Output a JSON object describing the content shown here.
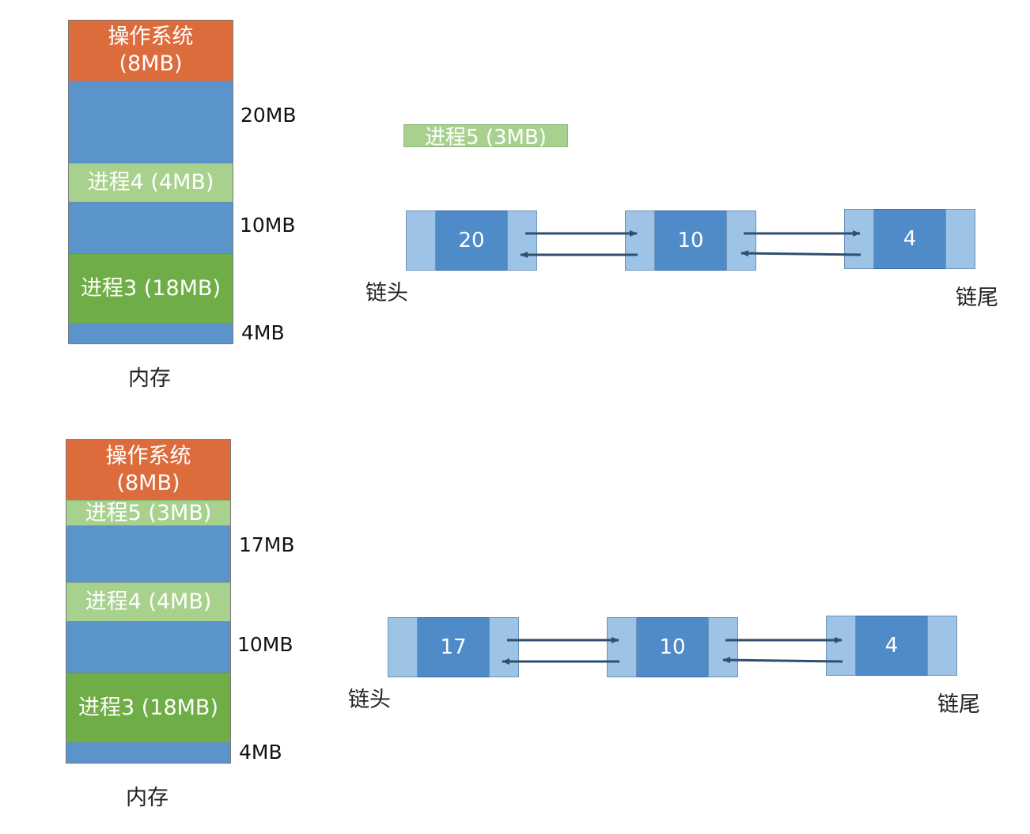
{
  "top": {
    "memory": {
      "os_label": "操作系统\n(8MB)",
      "free1_label": "",
      "process4_label": "进程4 (4MB)",
      "free2_label": "",
      "process3_label": "进程3 (18MB)",
      "free3_label": "",
      "caption": "内存"
    },
    "sizes": [
      "20MB",
      "10MB",
      "4MB"
    ],
    "incoming_process": "进程5 (3MB)",
    "list": {
      "nodes": [
        "20",
        "10",
        "4"
      ],
      "head_label": "链头",
      "tail_label": "链尾"
    }
  },
  "bottom": {
    "memory": {
      "os_label": "操作系统\n(8MB)",
      "process5_label": "进程5 (3MB)",
      "free1_label": "",
      "process4_label": "进程4 (4MB)",
      "free2_label": "",
      "process3_label": "进程3 (18MB)",
      "free3_label": "",
      "caption": "内存"
    },
    "sizes": [
      "17MB",
      "10MB",
      "4MB"
    ],
    "list": {
      "nodes": [
        "17",
        "10",
        "4"
      ],
      "head_label": "链头",
      "tail_label": "链尾"
    }
  },
  "colors": {
    "os": "#dd6c3d",
    "free": "#5b93cb",
    "process_light": "#a9d18e",
    "process_dark": "#6fad47",
    "node_value": "#4f8bc9",
    "node_pointer": "#9dc3e6",
    "arrow": "#2f4f6f"
  }
}
